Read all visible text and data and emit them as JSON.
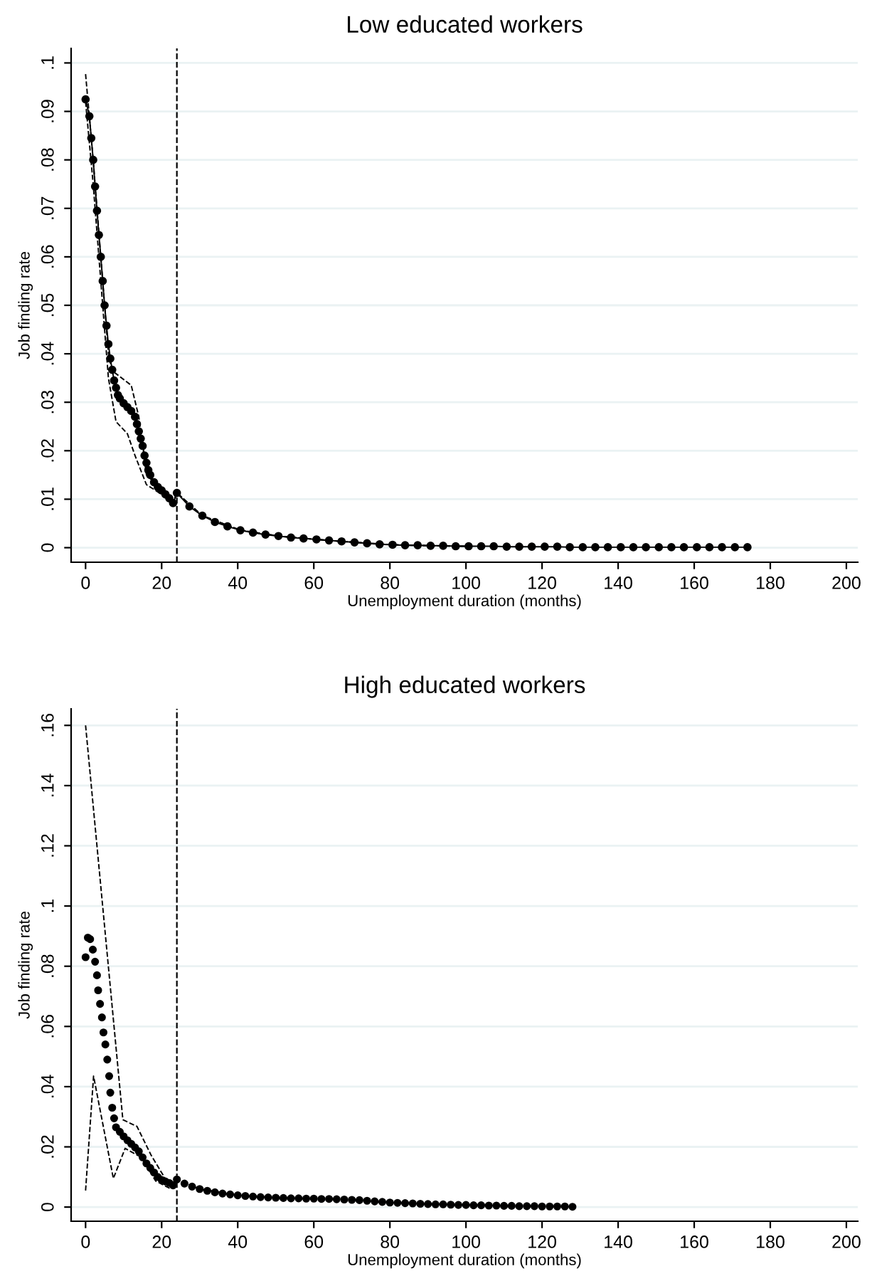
{
  "chart_data": [
    {
      "type": "line",
      "title": "Low educated workers",
      "xlabel": "Unemployment duration (months)",
      "ylabel": "Job finding rate",
      "marker": "circle",
      "grid": "y",
      "legend": false,
      "xlim": [
        -3.8,
        203
      ],
      "xticks": [
        0,
        20,
        40,
        60,
        80,
        100,
        120,
        140,
        160,
        180,
        200
      ],
      "ylim": [
        -0.003,
        0.103
      ],
      "yticks": [
        {
          "value": 0,
          "label": "0"
        },
        {
          "value": 0.01,
          "label": ".01"
        },
        {
          "value": 0.02,
          "label": ".02"
        },
        {
          "value": 0.03,
          "label": ".03"
        },
        {
          "value": 0.04,
          "label": ".04"
        },
        {
          "value": 0.05,
          "label": ".05"
        },
        {
          "value": 0.06,
          "label": ".06"
        },
        {
          "value": 0.07,
          "label": ".07"
        },
        {
          "value": 0.08,
          "label": ".08"
        },
        {
          "value": 0.09,
          "label": ".09"
        },
        {
          "value": 0.1,
          "label": ".1"
        }
      ],
      "ref_lines": [
        {
          "axis": "x",
          "value": 24,
          "color": "#000000",
          "line_style": "dashed"
        }
      ],
      "series": [
        {
          "line_style": "solid",
          "color": "#000000",
          "x": [
            0,
            1,
            1.5,
            2,
            2.5,
            3,
            3.5,
            4,
            4.5,
            5,
            5.5,
            6,
            6.5,
            7,
            7.5,
            8,
            8.5,
            9,
            10,
            11,
            12,
            13,
            13.5,
            14,
            14.5,
            15,
            15.5,
            16,
            16.5,
            17,
            18,
            19,
            20,
            21,
            22,
            23,
            24,
            27.3,
            30.7,
            34,
            37.3,
            40.7,
            44,
            47.3,
            50.7,
            54,
            57.3,
            60.7,
            64,
            67.3,
            70.7,
            74,
            77.3,
            80.7,
            84,
            87.3,
            90.7,
            94,
            97.3,
            100.7,
            104,
            107.3,
            110.7,
            114,
            117.3,
            120.7,
            124,
            127.3,
            130.7,
            134,
            137.3,
            140.7,
            144,
            147.3,
            150.7,
            154,
            157.3,
            160.7,
            164,
            167.3,
            170.7,
            174
          ],
          "values": [
            0.0925,
            0.089,
            0.0845,
            0.08,
            0.0745,
            0.0695,
            0.0645,
            0.06,
            0.055,
            0.05,
            0.0458,
            0.042,
            0.039,
            0.0367,
            0.0345,
            0.033,
            0.0315,
            0.0308,
            0.0298,
            0.029,
            0.0282,
            0.027,
            0.0255,
            0.024,
            0.0225,
            0.021,
            0.019,
            0.0175,
            0.016,
            0.015,
            0.0135,
            0.0125,
            0.0118,
            0.011,
            0.0102,
            0.0092,
            0.0113,
            0.0085,
            0.0066,
            0.0053,
            0.0044,
            0.0036,
            0.0031,
            0.0027,
            0.0024,
            0.0021,
            0.0019,
            0.0017,
            0.0015,
            0.0013,
            0.0011,
            0.0009,
            0.0007,
            0.0006,
            0.0005,
            0.0005,
            0.0004,
            0.0004,
            0.0003,
            0.0003,
            0.0003,
            0.0003,
            0.0002,
            0.0002,
            0.0002,
            0.0002,
            0.0002,
            0.0001,
            0.0001,
            0.0001,
            0.0001,
            0.0001,
            0.0001,
            0.0001,
            0.0001,
            0.0001,
            0.0001,
            0.0001,
            0.0001,
            0.0001,
            0.0001,
            0.0001
          ]
        },
        {
          "type": "line",
          "line_style": "dashed",
          "marker": "none",
          "color": "#000000",
          "x": [
            0,
            2,
            4,
            6,
            7,
            12,
            14,
            16,
            20,
            23,
            24,
            30.7,
            40.7,
            50.7,
            60.7,
            70.7,
            80.7,
            90.7,
            100.7
          ],
          "values": [
            0.0977,
            0.08,
            0.06,
            0.04,
            0.0365,
            0.0335,
            0.027,
            0.015,
            0.012,
            0.0095,
            0.0113,
            0.0066,
            0.0036,
            0.0024,
            0.0017,
            0.0011,
            0.0006,
            0.0004,
            0.0003
          ]
        },
        {
          "type": "line",
          "line_style": "dashed",
          "marker": "none",
          "color": "#000000",
          "x": [
            0,
            2,
            4,
            6,
            8,
            11,
            13,
            16,
            20,
            23,
            24,
            30.7,
            40.7,
            50.7,
            60.7,
            70.7,
            80.7,
            90.7,
            100.7
          ],
          "values": [
            0.092,
            0.075,
            0.055,
            0.035,
            0.026,
            0.0235,
            0.019,
            0.013,
            0.011,
            0.0088,
            0.0113,
            0.0066,
            0.0036,
            0.0024,
            0.0017,
            0.0011,
            0.0006,
            0.0004,
            0.0003
          ]
        }
      ]
    },
    {
      "type": "scatter",
      "title": "High educated workers",
      "xlabel": "Unemployment duration (months)",
      "ylabel": "Job finding rate",
      "marker": "circle",
      "grid": "y",
      "legend": false,
      "xlim": [
        -3.8,
        203
      ],
      "xticks": [
        0,
        20,
        40,
        60,
        80,
        100,
        120,
        140,
        160,
        180,
        200
      ],
      "ylim": [
        -0.0047,
        0.1655
      ],
      "yticks": [
        {
          "value": 0,
          "label": "0"
        },
        {
          "value": 0.02,
          "label": ".02"
        },
        {
          "value": 0.04,
          "label": ".04"
        },
        {
          "value": 0.06,
          "label": ".06"
        },
        {
          "value": 0.08,
          "label": ".08"
        },
        {
          "value": 0.1,
          "label": ".1"
        },
        {
          "value": 0.12,
          "label": ".12"
        },
        {
          "value": 0.14,
          "label": ".14"
        },
        {
          "value": 0.16,
          "label": ".16"
        }
      ],
      "ref_lines": [
        {
          "axis": "x",
          "value": 24,
          "color": "#000000",
          "line_style": "dashed"
        }
      ],
      "series": [
        {
          "color": "#000000",
          "x": [
            0,
            0.6,
            1.2,
            1.9,
            2.5,
            3,
            3.3,
            3.8,
            4.3,
            4.7,
            5.2,
            5.7,
            6.2,
            6.5,
            7,
            7.5,
            8,
            9,
            10,
            11,
            12,
            13,
            14,
            15,
            16,
            17,
            18,
            19,
            20,
            21,
            22,
            23,
            24,
            26,
            28,
            30,
            32,
            34,
            36,
            38,
            40,
            42,
            44,
            46,
            48,
            50,
            52,
            54,
            56,
            58,
            60,
            62,
            64,
            66,
            68,
            70,
            72,
            74,
            76,
            78,
            80,
            82,
            84,
            86,
            88,
            90,
            92,
            94,
            96,
            98,
            100,
            102,
            104,
            106,
            108,
            110,
            112,
            114,
            116,
            118,
            120,
            122,
            124,
            126,
            128
          ],
          "values": [
            0.083,
            0.0895,
            0.089,
            0.0855,
            0.0815,
            0.077,
            0.072,
            0.0675,
            0.063,
            0.058,
            0.054,
            0.049,
            0.0435,
            0.038,
            0.033,
            0.0295,
            0.0265,
            0.025,
            0.0235,
            0.0222,
            0.021,
            0.0198,
            0.0185,
            0.0165,
            0.0145,
            0.013,
            0.0115,
            0.01,
            0.009,
            0.0085,
            0.008,
            0.0072,
            0.0092,
            0.0078,
            0.0068,
            0.006,
            0.0054,
            0.0049,
            0.0045,
            0.0042,
            0.0039,
            0.0037,
            0.0035,
            0.0033,
            0.0032,
            0.0031,
            0.003,
            0.0029,
            0.0029,
            0.0028,
            0.0028,
            0.0027,
            0.0027,
            0.0026,
            0.0025,
            0.0024,
            0.0023,
            0.0021,
            0.0019,
            0.0017,
            0.0015,
            0.0014,
            0.0013,
            0.0012,
            0.0011,
            0.001,
            0.0009,
            0.0009,
            0.0008,
            0.0007,
            0.0007,
            0.0006,
            0.0006,
            0.0005,
            0.0005,
            0.0004,
            0.0004,
            0.0003,
            0.0003,
            0.0003,
            0.0002,
            0.0002,
            0.0002,
            0.0002,
            0.0001
          ]
        },
        {
          "type": "line",
          "line_style": "dashed",
          "marker": "none",
          "color": "#000000",
          "x": [
            0,
            9.8,
            13.5,
            17.2,
            20.9,
            22.7,
            24,
            30,
            40,
            50,
            60,
            70,
            80,
            90,
            100,
            110,
            120,
            128
          ],
          "values": [
            0.16,
            0.029,
            0.0268,
            0.0173,
            0.0095,
            0.008,
            0.0092,
            0.006,
            0.0039,
            0.0031,
            0.0028,
            0.0024,
            0.0015,
            0.001,
            0.0007,
            0.0004,
            0.0002,
            0.0001
          ]
        },
        {
          "type": "line",
          "line_style": "dashed",
          "marker": "none",
          "color": "#000000",
          "x": [
            0,
            2.1,
            7.3,
            10.4,
            14.7,
            18.4,
            22,
            24,
            30,
            40,
            50,
            60,
            70,
            80,
            90,
            100,
            110,
            120,
            128
          ],
          "values": [
            0.0055,
            0.0435,
            0.0095,
            0.0195,
            0.0165,
            0.0087,
            0.0063,
            0.0092,
            0.006,
            0.0039,
            0.0031,
            0.0028,
            0.0024,
            0.0015,
            0.001,
            0.0007,
            0.0004,
            0.0002,
            0.0001
          ]
        }
      ]
    }
  ]
}
